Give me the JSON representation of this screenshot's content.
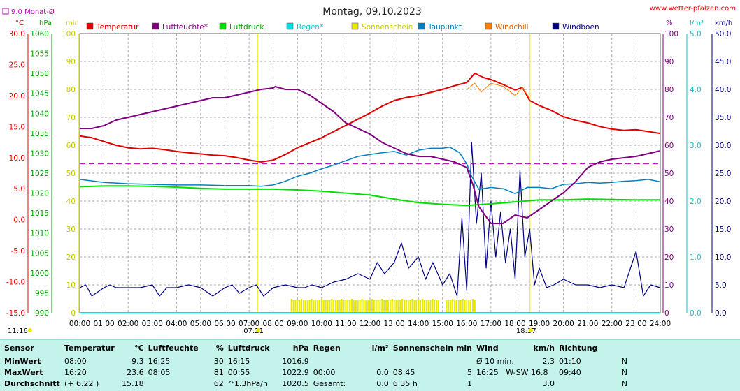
{
  "title": "Montag, 09.10.2023",
  "site": "www.wetter-pfalzen.com",
  "monthly_avg_label": "9.0 Monat-Ø",
  "top_left_time": "11:16",
  "colors": {
    "temperature": "#e00000",
    "humidity": "#800080",
    "pressure": "#00e000",
    "rain": "#00e0e0",
    "sunshine": "#e8e800",
    "dewpoint": "#0080c0",
    "windchill": "#ff8000",
    "gusts": "#000080",
    "grid": "#909090"
  },
  "chart_data": {
    "type": "line",
    "title": "Montag, 09.10.2023",
    "x_ticks": [
      "00:00",
      "01:00",
      "02:00",
      "03:00",
      "04:00",
      "05:00",
      "06:00",
      "07:00",
      "08:00",
      "09:00",
      "10:00",
      "11:00",
      "12:00",
      "13:00",
      "14:00",
      "15:00",
      "16:00",
      "17:00",
      "18:00",
      "19:00",
      "20:00",
      "21:00",
      "22:00",
      "23:00",
      "24:00"
    ],
    "sunrise": "07:21",
    "sunset": "18:37",
    "axes": {
      "temperature": {
        "unit": "°C",
        "range": [
          -15,
          30
        ],
        "ticks": [
          "30.0",
          "25.0",
          "20.0",
          "15.0",
          "10.0",
          "5.0",
          "0.0",
          "-5.0",
          "-10.0",
          "-15.0"
        ]
      },
      "pressure": {
        "unit": "hPa",
        "range": [
          990,
          1060
        ],
        "ticks": [
          "1060",
          "1055",
          "1050",
          "1045",
          "1040",
          "1035",
          "1030",
          "1025",
          "1020",
          "1015",
          "1010",
          "1005",
          "1000",
          "995",
          "990"
        ]
      },
      "sunshine": {
        "unit": "min",
        "range": [
          0,
          100
        ],
        "ticks": [
          "100",
          "90",
          "80",
          "70",
          "60",
          "50",
          "40",
          "30",
          "20",
          "10",
          "0"
        ]
      },
      "humidity": {
        "unit": "%",
        "range": [
          0,
          100
        ],
        "ticks": [
          "100",
          "90",
          "80",
          "70",
          "60",
          "50",
          "40",
          "30",
          "20",
          "10",
          "0"
        ]
      },
      "rain": {
        "unit": "l/m²",
        "range": [
          0,
          5
        ],
        "ticks": [
          "5.0",
          "4.0",
          "3.0",
          "2.0",
          "1.0",
          "0.0"
        ]
      },
      "wind": {
        "unit": "km/h",
        "range": [
          0,
          50
        ],
        "ticks": [
          "50.0",
          "45.0",
          "40.0",
          "35.0",
          "30.0",
          "25.0",
          "20.0",
          "15.0",
          "10.0",
          "5.0",
          "0.0"
        ]
      }
    },
    "legend": [
      "Temperatur",
      "Luftfeuchte*",
      "Luftdruck",
      "Regen*",
      "Sonnenschein",
      "Taupunkt",
      "Windchill",
      "Windböen"
    ],
    "monthly_avg_temperature": 9.0,
    "series": [
      {
        "name": "Temperatur",
        "axis": "temperature",
        "x": [
          0,
          0.5,
          1,
          1.5,
          2,
          2.5,
          3,
          3.5,
          4,
          4.5,
          5,
          5.5,
          6,
          6.5,
          7,
          7.5,
          8,
          8.5,
          9,
          9.5,
          10,
          10.5,
          11,
          11.5,
          12,
          12.5,
          13,
          13.5,
          14,
          14.5,
          15,
          15.5,
          16,
          16.33,
          16.7,
          17,
          17.5,
          18,
          18.3,
          18.6,
          19,
          19.5,
          20,
          20.5,
          21,
          21.5,
          22,
          22.5,
          23,
          23.5,
          24
        ],
        "y": [
          13.5,
          13.2,
          12.6,
          12.0,
          11.6,
          11.4,
          11.5,
          11.3,
          11.0,
          10.8,
          10.6,
          10.4,
          10.3,
          10.0,
          9.6,
          9.3,
          9.6,
          10.5,
          11.6,
          12.4,
          13.2,
          14.2,
          15.2,
          16.2,
          17.2,
          18.3,
          19.2,
          19.7,
          20.0,
          20.5,
          21.0,
          21.6,
          22.1,
          23.6,
          22.9,
          22.6,
          21.8,
          20.9,
          21.3,
          19.2,
          18.4,
          17.6,
          16.6,
          16.0,
          15.6,
          15.0,
          14.6,
          14.4,
          14.5,
          14.2,
          13.9
        ]
      },
      {
        "name": "Luftfeuchte*",
        "axis": "humidity",
        "x": [
          0,
          0.5,
          1,
          1.5,
          2,
          2.5,
          3,
          3.5,
          4,
          4.5,
          5,
          5.5,
          6,
          6.5,
          7,
          7.5,
          8,
          8.08,
          8.5,
          9,
          9.5,
          10,
          10.5,
          11,
          11.5,
          12,
          12.5,
          13,
          13.5,
          14,
          14.5,
          15,
          15.5,
          16,
          16.25,
          16.5,
          17,
          17.5,
          18,
          18.5,
          19,
          19.5,
          20,
          20.5,
          21,
          21.5,
          22,
          22.5,
          23,
          23.5,
          24
        ],
        "y": [
          66,
          66,
          67,
          69,
          70,
          71,
          72,
          73,
          74,
          75,
          76,
          77,
          77,
          78,
          79,
          80,
          80.5,
          81,
          80,
          80,
          78,
          75,
          72,
          68,
          66,
          64,
          61,
          59,
          57,
          56,
          56,
          55,
          54,
          52,
          46,
          38,
          32,
          32,
          35,
          34,
          37,
          40,
          43,
          47,
          52,
          54,
          55,
          55.5,
          56,
          57,
          58
        ]
      },
      {
        "name": "Luftdruck",
        "axis": "pressure",
        "x": [
          0,
          1,
          2,
          3,
          4,
          5,
          6,
          7,
          8,
          9,
          10,
          11,
          12,
          13,
          14,
          15,
          16,
          17,
          18,
          19,
          20,
          21,
          22,
          23,
          24
        ],
        "y": [
          1021.6,
          1021.8,
          1021.8,
          1021.7,
          1021.5,
          1021.2,
          1021.0,
          1021.0,
          1021.0,
          1020.8,
          1020.5,
          1020.0,
          1019.5,
          1018.5,
          1017.6,
          1017.2,
          1016.9,
          1017.3,
          1017.8,
          1018.3,
          1018.3,
          1018.5,
          1018.4,
          1018.3,
          1018.3
        ]
      },
      {
        "name": "Taupunkt",
        "axis": "temperature",
        "x": [
          0,
          1,
          2,
          3,
          4,
          5,
          6,
          7,
          7.5,
          8,
          8.5,
          9,
          9.5,
          10,
          10.5,
          11,
          11.5,
          12,
          12.5,
          13,
          13.5,
          14,
          14.5,
          15,
          15.3,
          15.7,
          16,
          16.2,
          16.5,
          17,
          17.5,
          18,
          18.5,
          19,
          19.5,
          20,
          20.5,
          21,
          21.5,
          22,
          22.5,
          23,
          23.5,
          24
        ],
        "y": [
          6.5,
          6.0,
          5.8,
          5.7,
          5.6,
          5.6,
          5.5,
          5.5,
          5.4,
          5.6,
          6.2,
          7.0,
          7.5,
          8.2,
          8.8,
          9.5,
          10.2,
          10.5,
          10.8,
          11.0,
          10.4,
          11.2,
          11.5,
          11.5,
          11.7,
          10.8,
          9.0,
          7.0,
          4.9,
          5.2,
          5.0,
          4.2,
          5.2,
          5.2,
          5.0,
          5.7,
          5.8,
          6.0,
          5.9,
          6.0,
          6.2,
          6.3,
          6.5,
          6.1
        ]
      },
      {
        "name": "Windchill",
        "axis": "temperature",
        "x": [
          16.0,
          16.33,
          16.6,
          17.0,
          17.5,
          18.0,
          18.3,
          18.6
        ],
        "y": [
          21.0,
          22.0,
          20.6,
          22.0,
          21.5,
          20.0,
          21.3,
          19.6
        ]
      },
      {
        "name": "Windböen",
        "axis": "wind",
        "x": [
          0,
          0.25,
          0.5,
          1,
          1.25,
          1.5,
          2,
          2.5,
          3,
          3.3,
          3.6,
          4,
          4.5,
          5,
          5.5,
          6,
          6.3,
          6.6,
          7,
          7.3,
          7.6,
          8,
          8.5,
          9,
          9.3,
          9.6,
          10,
          10.5,
          11,
          11.5,
          12,
          12.3,
          12.6,
          13,
          13.3,
          13.6,
          14,
          14.3,
          14.6,
          15,
          15.3,
          15.6,
          15.8,
          16.0,
          16.2,
          16.4,
          16.6,
          16.8,
          17.0,
          17.2,
          17.4,
          17.6,
          17.8,
          18.0,
          18.2,
          18.4,
          18.6,
          18.8,
          19.0,
          19.3,
          19.6,
          20,
          20.5,
          21,
          21.5,
          22,
          22.5,
          23,
          23.3,
          23.6,
          24
        ],
        "y": [
          4.5,
          5.0,
          3.0,
          4.5,
          5.0,
          4.5,
          4.5,
          4.5,
          5.0,
          3.0,
          4.5,
          4.5,
          5.0,
          4.5,
          3.0,
          4.5,
          5.0,
          3.5,
          4.5,
          5.0,
          3.0,
          4.5,
          5.0,
          4.5,
          4.5,
          5.0,
          4.5,
          5.5,
          6.0,
          7.0,
          6.0,
          9.0,
          7.0,
          9.0,
          12.5,
          8.0,
          10.0,
          6.0,
          9.0,
          5.0,
          7.0,
          3.0,
          17.0,
          4.0,
          30.5,
          16.0,
          25.0,
          8.0,
          20.0,
          10.0,
          18.0,
          9.0,
          15.0,
          6.0,
          25.5,
          10.0,
          15.0,
          5.0,
          8.0,
          4.5,
          5.0,
          6.0,
          5.0,
          5.0,
          4.5,
          5.0,
          4.5,
          11.0,
          3.0,
          5.0,
          4.5
        ]
      },
      {
        "name": "Regen*",
        "axis": "rain",
        "x": [
          0,
          24
        ],
        "y": [
          0.0,
          0.0
        ]
      }
    ],
    "sunshine_bars": {
      "start": 8.75,
      "end": 16.35,
      "value_min": 5
    }
  },
  "summary": {
    "headers": {
      "sensor": "Sensor",
      "temperature": "Temperatur",
      "temperature_unit": "°C",
      "humidity": "Luftfeuchte",
      "humidity_unit": "%",
      "pressure": "Luftdruck",
      "pressure_unit": "hPa",
      "rain": "Regen",
      "rain_unit": "l/m²",
      "sunshine": "Sonnenschein min",
      "wind": "Wind",
      "wind_unit": "km/h",
      "direction": "Richtung"
    },
    "rows": [
      {
        "label": "MinWert",
        "t_time": "08:00",
        "t_val": "9.3",
        "h_time": "16:25",
        "h_val": "30",
        "p_time": "16:15",
        "p_val": "1016.9",
        "r_time": "",
        "r_val": "",
        "s_time": "",
        "s_val": "",
        "w_time": "Ø 10 min.",
        "w_val": "2.3",
        "d_time": "01:10",
        "d_val": "N"
      },
      {
        "label": "MaxWert",
        "t_time": "16:20",
        "t_val": "23.6",
        "h_time": "08:05",
        "h_val": "81",
        "p_time": "00:55",
        "p_val": "1022.9",
        "r_time": "00:00",
        "r_val": "0.0",
        "s_time": "08:45",
        "s_val": "5",
        "w_time": "16:25   W-SW 16.8",
        "w_val": "",
        "d_time": "09:40",
        "d_val": "N"
      },
      {
        "label": "Durchschnitt",
        "t_time": "(+ 6.22 )",
        "t_val": "15.18",
        "h_time": "",
        "h_val": "62",
        "p_time": "^1.3hPa/h",
        "p_val": "1020.5",
        "r_time": "Gesamt:",
        "r_val": "0.0",
        "s_time": "6:35 h",
        "s_val": "1",
        "w_time": "",
        "w_val": "3.0",
        "d_time": "",
        "d_val": "N"
      }
    ]
  }
}
